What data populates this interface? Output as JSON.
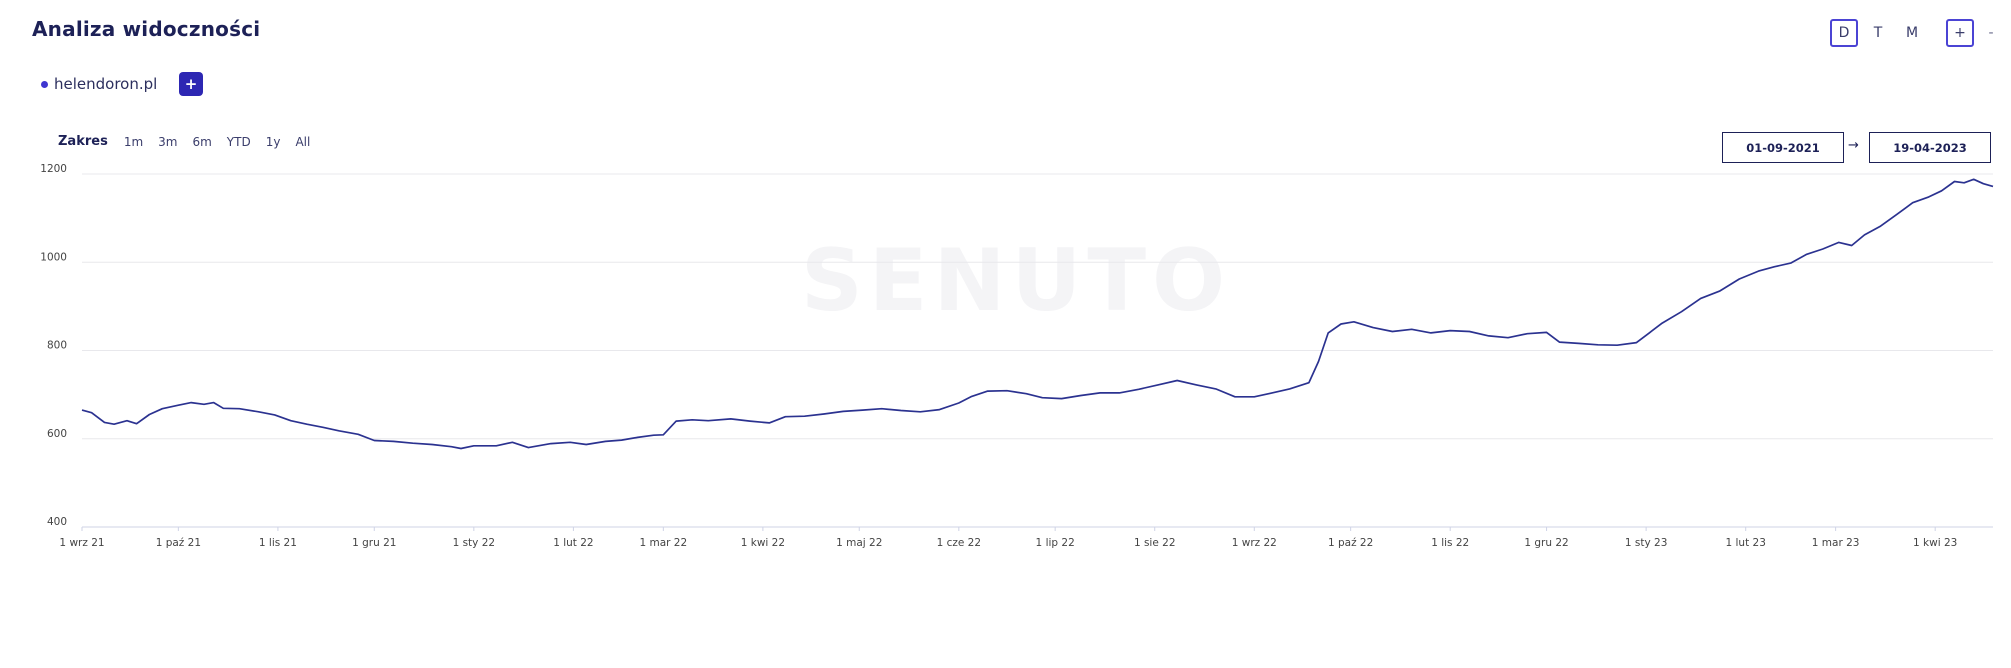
{
  "header": {
    "title": "Analiza widoczności"
  },
  "granularity": {
    "items": [
      "D",
      "T",
      "M"
    ],
    "active": "D"
  },
  "zoom": {
    "plus": "+",
    "minus": "-"
  },
  "domains": [
    {
      "label": "helendoron.pl",
      "color": "#3f36d0"
    }
  ],
  "add_domain": {
    "label": "+"
  },
  "range": {
    "label": "Zakres",
    "buttons": [
      "1m",
      "3m",
      "6m",
      "YTD",
      "1y",
      "All"
    ]
  },
  "date_range": {
    "from": "01-09-2021",
    "separator": "→",
    "to": "19-04-2023"
  },
  "watermark": "SENUTO",
  "chart_data": {
    "type": "line",
    "ylim": [
      400,
      1200
    ],
    "y_ticks": [
      400,
      600,
      800,
      1000,
      1200
    ],
    "y_tick_labels": [
      "400",
      "600",
      "800",
      "1000",
      "1200"
    ],
    "x_ticks": [
      {
        "date": "2021-09-01",
        "label": "1 wrz 21"
      },
      {
        "date": "2021-10-01",
        "label": "1 paź 21"
      },
      {
        "date": "2021-11-01",
        "label": "1 lis 21"
      },
      {
        "date": "2021-12-01",
        "label": "1 gru 21"
      },
      {
        "date": "2022-01-01",
        "label": "1 sty 22"
      },
      {
        "date": "2022-02-01",
        "label": "1 lut 22"
      },
      {
        "date": "2022-03-01",
        "label": "1 mar 22"
      },
      {
        "date": "2022-04-01",
        "label": "1 kwi 22"
      },
      {
        "date": "2022-05-01",
        "label": "1 maj 22"
      },
      {
        "date": "2022-06-01",
        "label": "1 cze 22"
      },
      {
        "date": "2022-07-01",
        "label": "1 lip 22"
      },
      {
        "date": "2022-08-01",
        "label": "1 sie 22"
      },
      {
        "date": "2022-09-01",
        "label": "1 wrz 22"
      },
      {
        "date": "2022-10-01",
        "label": "1 paź 22"
      },
      {
        "date": "2022-11-01",
        "label": "1 lis 22"
      },
      {
        "date": "2022-12-01",
        "label": "1 gru 22"
      },
      {
        "date": "2023-01-01",
        "label": "1 sty 23"
      },
      {
        "date": "2023-02-01",
        "label": "1 lut 23"
      },
      {
        "date": "2023-03-01",
        "label": "1 mar 23"
      },
      {
        "date": "2023-04-01",
        "label": "1 kwi 23"
      }
    ],
    "grid": true,
    "legend": "none",
    "series": [
      {
        "color": "#2b3290",
        "points": [
          [
            "2021-09-01",
            665
          ],
          [
            "2021-09-04",
            659
          ],
          [
            "2021-09-08",
            637
          ],
          [
            "2021-09-11",
            633
          ],
          [
            "2021-09-15",
            641
          ],
          [
            "2021-09-18",
            634
          ],
          [
            "2021-09-22",
            655
          ],
          [
            "2021-09-26",
            668
          ],
          [
            "2021-10-01",
            676
          ],
          [
            "2021-10-05",
            682
          ],
          [
            "2021-10-09",
            678
          ],
          [
            "2021-10-12",
            682
          ],
          [
            "2021-10-15",
            669
          ],
          [
            "2021-10-20",
            668
          ],
          [
            "2021-10-26",
            661
          ],
          [
            "2021-10-31",
            654
          ],
          [
            "2021-11-05",
            641
          ],
          [
            "2021-11-10",
            633
          ],
          [
            "2021-11-15",
            626
          ],
          [
            "2021-11-20",
            618
          ],
          [
            "2021-11-26",
            610
          ],
          [
            "2021-12-01",
            596
          ],
          [
            "2021-12-07",
            594
          ],
          [
            "2021-12-13",
            590
          ],
          [
            "2021-12-19",
            587
          ],
          [
            "2021-12-25",
            582
          ],
          [
            "2021-12-28",
            578
          ],
          [
            "2022-01-01",
            584
          ],
          [
            "2022-01-08",
            584
          ],
          [
            "2022-01-13",
            592
          ],
          [
            "2022-01-18",
            580
          ],
          [
            "2022-01-25",
            589
          ],
          [
            "2022-01-31",
            592
          ],
          [
            "2022-02-05",
            587
          ],
          [
            "2022-02-11",
            594
          ],
          [
            "2022-02-16",
            597
          ],
          [
            "2022-02-21",
            603
          ],
          [
            "2022-02-26",
            608
          ],
          [
            "2022-03-01",
            609
          ],
          [
            "2022-03-05",
            640
          ],
          [
            "2022-03-10",
            643
          ],
          [
            "2022-03-15",
            641
          ],
          [
            "2022-03-22",
            645
          ],
          [
            "2022-03-28",
            640
          ],
          [
            "2022-04-03",
            636
          ],
          [
            "2022-04-08",
            650
          ],
          [
            "2022-04-14",
            651
          ],
          [
            "2022-04-20",
            656
          ],
          [
            "2022-04-26",
            662
          ],
          [
            "2022-05-02",
            665
          ],
          [
            "2022-05-08",
            668
          ],
          [
            "2022-05-14",
            664
          ],
          [
            "2022-05-20",
            661
          ],
          [
            "2022-05-26",
            666
          ],
          [
            "2022-06-01",
            681
          ],
          [
            "2022-06-05",
            696
          ],
          [
            "2022-06-10",
            708
          ],
          [
            "2022-06-16",
            709
          ],
          [
            "2022-06-22",
            702
          ],
          [
            "2022-06-27",
            693
          ],
          [
            "2022-07-03",
            691
          ],
          [
            "2022-07-09",
            698
          ],
          [
            "2022-07-15",
            704
          ],
          [
            "2022-07-21",
            704
          ],
          [
            "2022-07-27",
            712
          ],
          [
            "2022-08-02",
            722
          ],
          [
            "2022-08-08",
            732
          ],
          [
            "2022-08-14",
            722
          ],
          [
            "2022-08-20",
            713
          ],
          [
            "2022-08-26",
            695
          ],
          [
            "2022-09-01",
            695
          ],
          [
            "2022-09-06",
            703
          ],
          [
            "2022-09-12",
            713
          ],
          [
            "2022-09-18",
            727
          ],
          [
            "2022-09-21",
            775
          ],
          [
            "2022-09-24",
            840
          ],
          [
            "2022-09-28",
            860
          ],
          [
            "2022-10-02",
            865
          ],
          [
            "2022-10-08",
            852
          ],
          [
            "2022-10-14",
            843
          ],
          [
            "2022-10-20",
            848
          ],
          [
            "2022-10-26",
            840
          ],
          [
            "2022-11-01",
            845
          ],
          [
            "2022-11-07",
            843
          ],
          [
            "2022-11-13",
            833
          ],
          [
            "2022-11-19",
            829
          ],
          [
            "2022-11-25",
            838
          ],
          [
            "2022-12-01",
            841
          ],
          [
            "2022-12-05",
            819
          ],
          [
            "2022-12-11",
            816
          ],
          [
            "2022-12-17",
            813
          ],
          [
            "2022-12-23",
            812
          ],
          [
            "2022-12-29",
            818
          ],
          [
            "2023-01-02",
            840
          ],
          [
            "2023-01-06",
            862
          ],
          [
            "2023-01-12",
            888
          ],
          [
            "2023-01-18",
            918
          ],
          [
            "2023-01-24",
            935
          ],
          [
            "2023-01-30",
            962
          ],
          [
            "2023-02-05",
            980
          ],
          [
            "2023-02-10",
            990
          ],
          [
            "2023-02-15",
            998
          ],
          [
            "2023-02-20",
            1018
          ],
          [
            "2023-02-25",
            1030
          ],
          [
            "2023-03-02",
            1045
          ],
          [
            "2023-03-06",
            1038
          ],
          [
            "2023-03-10",
            1062
          ],
          [
            "2023-03-15",
            1082
          ],
          [
            "2023-03-20",
            1108
          ],
          [
            "2023-03-25",
            1135
          ],
          [
            "2023-03-30",
            1148
          ],
          [
            "2023-04-03",
            1162
          ],
          [
            "2023-04-07",
            1183
          ],
          [
            "2023-04-10",
            1180
          ],
          [
            "2023-04-13",
            1188
          ],
          [
            "2023-04-16",
            1178
          ],
          [
            "2023-04-19",
            1172
          ]
        ]
      }
    ]
  }
}
